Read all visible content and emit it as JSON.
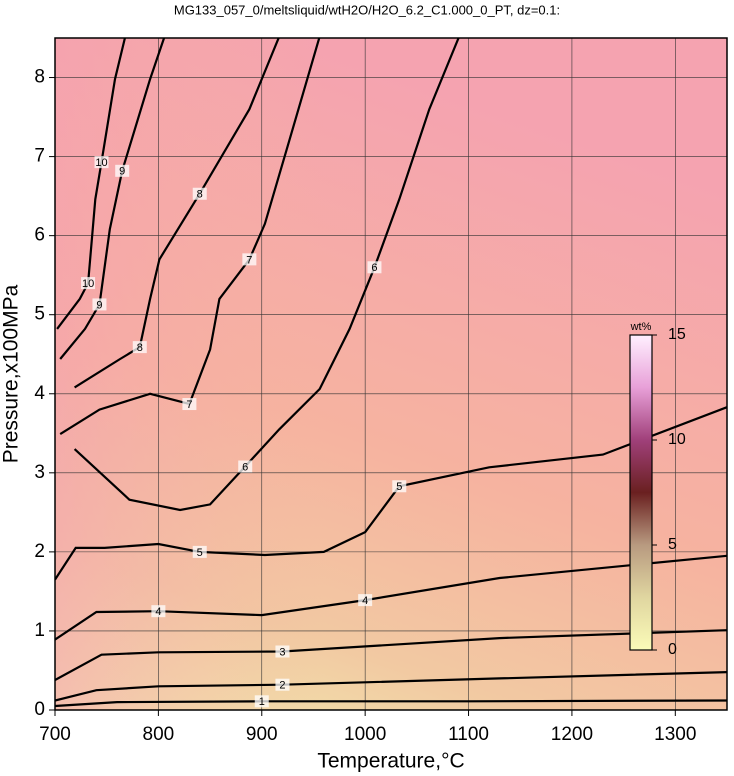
{
  "chart_data": {
    "type": "contour",
    "title": "MG133_057_0/meltsliquid/wtH2O/H2O_6.2_C1.000_0_PT, dz=0.1:",
    "x_label": "Temperature,°C",
    "y_label": "Pressure,x100MPa",
    "xlim": [
      700,
      1350
    ],
    "ylim": [
      0,
      8.5
    ],
    "xticks": [
      700,
      800,
      900,
      1000,
      1100,
      1200,
      1300
    ],
    "yticks": [
      0,
      1,
      2,
      3,
      4,
      5,
      6,
      7,
      8
    ],
    "grid": true,
    "contours": [
      {
        "level": 1,
        "x": [
          700,
          760,
          900,
          1100,
          1350
        ],
        "y": [
          0.05,
          0.1,
          0.11,
          0.11,
          0.12
        ]
      },
      {
        "level": 2,
        "x": [
          700,
          740,
          800,
          920,
          1130,
          1350
        ],
        "y": [
          0.12,
          0.25,
          0.3,
          0.32,
          0.4,
          0.48
        ]
      },
      {
        "level": 3,
        "x": [
          700,
          745,
          800,
          920,
          1130,
          1350
        ],
        "y": [
          0.38,
          0.7,
          0.73,
          0.74,
          0.91,
          1.01
        ]
      },
      {
        "level": 4,
        "x": [
          700,
          740,
          800,
          900,
          1000,
          1130,
          1350
        ],
        "y": [
          0.89,
          1.24,
          1.25,
          1.2,
          1.39,
          1.67,
          1.95
        ]
      },
      {
        "level": 5,
        "x": [
          700,
          720,
          748,
          800,
          840,
          903,
          960,
          1000,
          1033,
          1120,
          1230,
          1350
        ],
        "y": [
          1.65,
          2.05,
          2.05,
          2.1,
          2.0,
          1.96,
          2.0,
          2.25,
          2.83,
          3.07,
          3.23,
          3.83
        ]
      },
      {
        "level": 6,
        "x": [
          719,
          772,
          821,
          850,
          884,
          917,
          956,
          985,
          1009,
          1033,
          1062,
          1091
        ],
        "y": [
          3.3,
          2.66,
          2.53,
          2.6,
          3.08,
          3.55,
          4.06,
          4.82,
          5.6,
          6.46,
          7.6,
          8.52
        ]
      },
      {
        "level": 7,
        "x": [
          705,
          743,
          792,
          830,
          850,
          859,
          888,
          903,
          927,
          956
        ],
        "y": [
          3.49,
          3.8,
          4.0,
          3.87,
          4.56,
          5.2,
          5.7,
          6.15,
          7.22,
          8.52
        ]
      },
      {
        "level": 8,
        "x": [
          719,
          763,
          782,
          792,
          801,
          840,
          888,
          917
        ],
        "y": [
          4.08,
          4.44,
          4.59,
          5.2,
          5.7,
          6.53,
          7.6,
          8.52
        ]
      },
      {
        "level": 9,
        "x": [
          705,
          729,
          743,
          753,
          765,
          792,
          806
        ],
        "y": [
          4.44,
          4.82,
          5.13,
          6.08,
          6.82,
          7.98,
          8.52
        ]
      },
      {
        "level": 10,
        "x": [
          702,
          724,
          732,
          739,
          745,
          758,
          768
        ],
        "y": [
          4.82,
          5.2,
          5.4,
          6.46,
          6.93,
          7.98,
          8.52
        ]
      }
    ],
    "colorbar": {
      "label": "wt%",
      "lim": [
        0,
        15
      ],
      "ticks": [
        0,
        5,
        10,
        15
      ],
      "colors": [
        "#fbfbb8",
        "#e0d6a0",
        "#b89a80",
        "#6a2020",
        "#a0407a",
        "#e8a0d8",
        "#fff0ff"
      ]
    }
  }
}
